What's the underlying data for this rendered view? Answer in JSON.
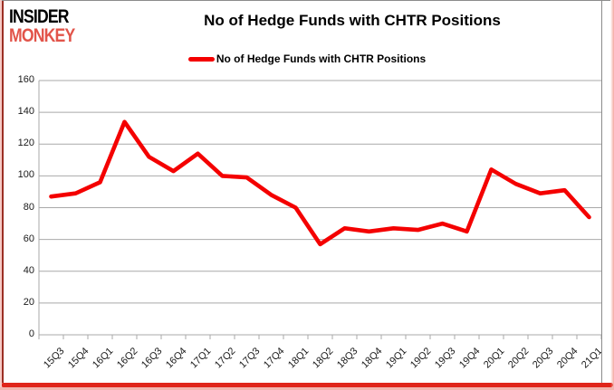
{
  "logo": {
    "line1": "INSIDER",
    "line2": "MONKEY"
  },
  "header": {
    "title": "No of Hedge Funds with CHTR Positions"
  },
  "legend": {
    "label": "No of Hedge Funds with CHTR Positions"
  },
  "colors": {
    "line": "#f40000",
    "logo_accent": "#e2544a",
    "gridline": "#a9a9a9",
    "axis": "#a9a9a9",
    "frame_gray": "#8c8c8c",
    "frame_left_red": "#9c2f24",
    "frame_bottom_red": "#e0251a",
    "label_text": "#1a1a1a"
  },
  "chart_data": {
    "type": "line",
    "title": "No of Hedge Funds with CHTR Positions",
    "series_name": "No of Hedge Funds with CHTR Positions",
    "categories": [
      "15Q3",
      "15Q4",
      "16Q1",
      "16Q2",
      "16Q3",
      "16Q4",
      "17Q1",
      "17Q2",
      "17Q3",
      "17Q4",
      "18Q1",
      "18Q2",
      "18Q3",
      "18Q4",
      "19Q1",
      "19Q2",
      "19Q3",
      "19Q4",
      "20Q1",
      "20Q2",
      "20Q3",
      "20Q4",
      "21Q1"
    ],
    "values": [
      87,
      89,
      96,
      134,
      112,
      103,
      114,
      100,
      99,
      88,
      80,
      57,
      67,
      65,
      67,
      66,
      70,
      65,
      104,
      95,
      89,
      91,
      74
    ],
    "xlabel": "",
    "ylabel": "",
    "ylim": [
      0,
      160
    ],
    "yticks": [
      0,
      20,
      40,
      60,
      80,
      100,
      120,
      140,
      160
    ],
    "grid": true,
    "legend_position": "top-center"
  }
}
